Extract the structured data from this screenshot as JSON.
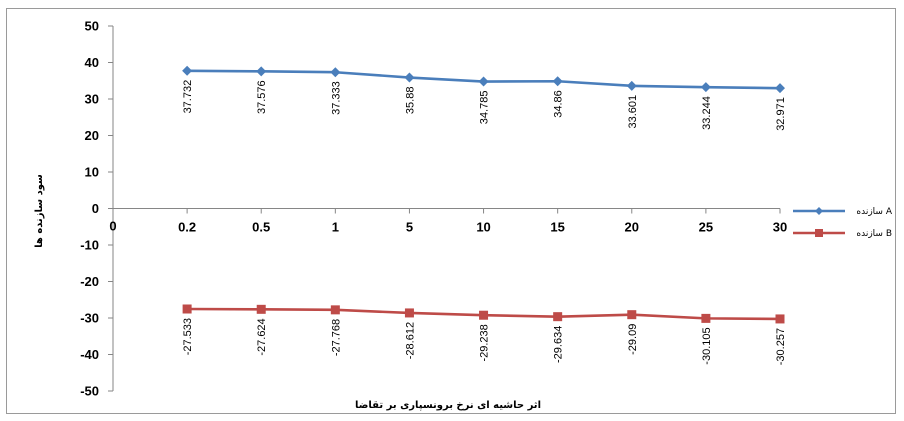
{
  "chart_data": {
    "type": "line",
    "categories": [
      "0.2",
      "0.5",
      "1",
      "5",
      "10",
      "15",
      "20",
      "25",
      "30"
    ],
    "origin_label": "0",
    "series": [
      {
        "name": "سازنده A",
        "color": "#4a7ebb",
        "marker": "diamond",
        "values": [
          37.732,
          37.576,
          37.333,
          35.88,
          34.785,
          34.86,
          33.601,
          33.244,
          32.971
        ],
        "labels": [
          "37.732",
          "37.576",
          "37.333",
          "35.88",
          "34.785",
          "34.86",
          "33.601",
          "33.244",
          "32.971"
        ]
      },
      {
        "name": "سازنده B",
        "color": "#be4b48",
        "marker": "square",
        "values": [
          -27.533,
          -27.624,
          -27.768,
          -28.612,
          -29.238,
          -29.634,
          -29.09,
          -30.105,
          -30.257
        ],
        "labels": [
          "-27.533",
          "-27.624",
          "-27.768",
          "-28.612",
          "-29.238",
          "-29.634",
          "-29.09",
          "-30.105",
          "-30.257"
        ]
      }
    ],
    "xlabel": "اثر حاشیه ای نرخ برونسپاری بر تقاضا",
    "ylabel": "سود سازنده ها",
    "ylim": [
      -50,
      50
    ],
    "yticks": [
      "50",
      "40",
      "30",
      "20",
      "10",
      "0",
      "-10",
      "-20",
      "-30",
      "-40",
      "-50"
    ],
    "grid": false,
    "legend_position": "right"
  }
}
